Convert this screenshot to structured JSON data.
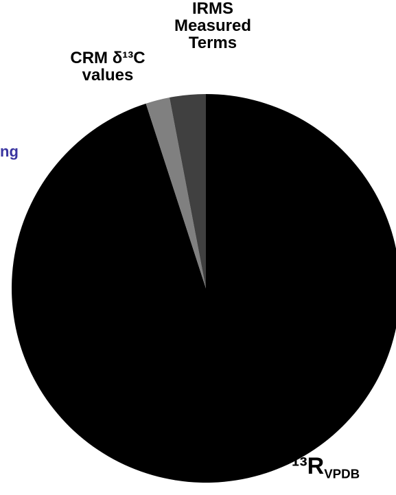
{
  "chart_data": {
    "type": "pie",
    "categories": [
      "¹³RVPDB",
      "CRM δ¹³C values",
      "IRMS Measured Terms"
    ],
    "values": [
      95,
      2,
      3
    ],
    "colors": [
      "#000000",
      "#808080",
      "#404040"
    ],
    "annotation": "ng"
  }
}
